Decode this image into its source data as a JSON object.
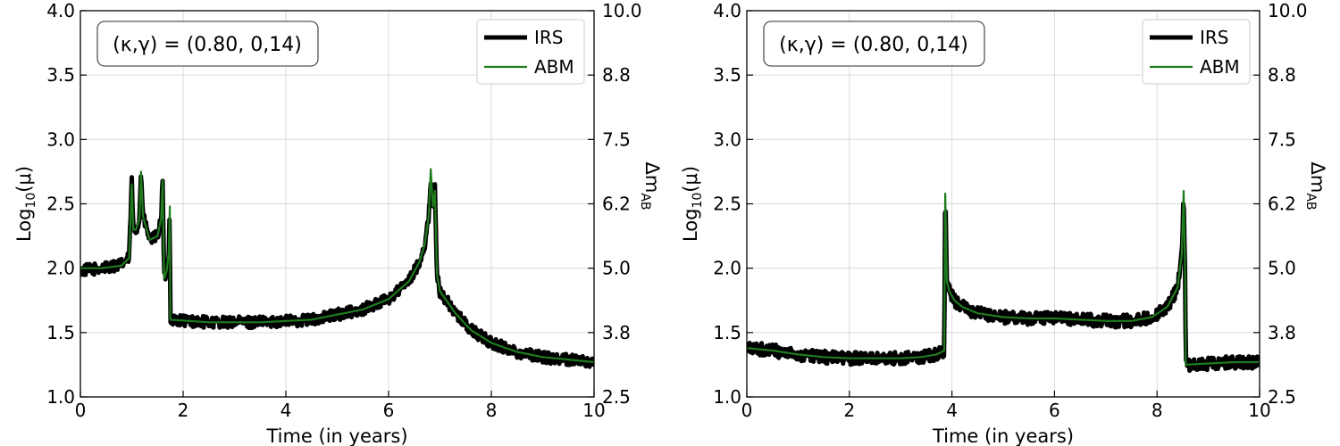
{
  "chart_data": [
    {
      "type": "line",
      "panel": "left",
      "annotation": "(κ,γ) = (0.80, 0,14)",
      "xlabel": "Time (in years)",
      "ylabel": "Log",
      "ylabel_sub": "10",
      "ylabel_suffix": "(μ)",
      "y2label": "Δm",
      "y2label_sub": "AB",
      "xlim": [
        0,
        10
      ],
      "ylim": [
        1.0,
        4.0
      ],
      "xticks": [
        "0",
        "2",
        "4",
        "6",
        "8",
        "10"
      ],
      "yticks": [
        "1.0",
        "1.5",
        "2.0",
        "2.5",
        "3.0",
        "3.5",
        "4.0"
      ],
      "y2ticks": [
        "2.5",
        "3.8",
        "5.0",
        "6.2",
        "7.5",
        "8.8",
        "10.0"
      ],
      "grid": true,
      "legend": "top-right",
      "series": [
        {
          "name": "IRS",
          "color": "#000000",
          "noise": 0.045,
          "x": [
            0,
            0.4,
            0.8,
            0.95,
            1.0,
            1.03,
            1.08,
            1.15,
            1.18,
            1.22,
            1.35,
            1.5,
            1.57,
            1.6,
            1.63,
            1.68,
            1.72,
            1.74,
            1.75,
            2.5,
            3.5,
            4.5,
            5.5,
            6.0,
            6.4,
            6.6,
            6.7,
            6.78,
            6.82,
            6.86,
            6.9,
            6.94,
            7.0,
            7.3,
            7.6,
            8.0,
            8.5,
            9.0,
            9.5,
            10.0
          ],
          "y": [
            1.98,
            2.0,
            2.03,
            2.08,
            2.68,
            2.3,
            2.3,
            2.38,
            2.75,
            2.4,
            2.22,
            2.25,
            2.38,
            2.68,
            1.92,
            1.98,
            2.12,
            2.48,
            1.6,
            1.58,
            1.58,
            1.6,
            1.68,
            1.76,
            1.9,
            2.05,
            2.18,
            2.38,
            2.7,
            2.48,
            2.62,
            1.95,
            1.82,
            1.65,
            1.52,
            1.42,
            1.35,
            1.31,
            1.29,
            1.27
          ]
        },
        {
          "name": "ABM",
          "color": "#1e7b1e",
          "x": [
            0,
            0.4,
            0.8,
            0.95,
            1.0,
            1.03,
            1.08,
            1.15,
            1.18,
            1.22,
            1.35,
            1.5,
            1.57,
            1.6,
            1.63,
            1.68,
            1.72,
            1.74,
            1.75,
            2.5,
            3.5,
            4.5,
            5.5,
            6.0,
            6.4,
            6.6,
            6.7,
            6.78,
            6.82,
            6.86,
            6.9,
            6.94,
            7.0,
            7.3,
            7.6,
            8.0,
            8.5,
            9.0,
            9.5,
            10.0
          ],
          "y": [
            2.0,
            2.0,
            2.02,
            2.08,
            2.65,
            2.3,
            2.3,
            2.38,
            2.75,
            2.4,
            2.22,
            2.25,
            2.38,
            2.68,
            1.92,
            1.98,
            2.12,
            2.48,
            1.6,
            1.58,
            1.58,
            1.6,
            1.68,
            1.76,
            1.9,
            2.05,
            2.18,
            2.4,
            2.77,
            2.48,
            2.6,
            1.95,
            1.82,
            1.65,
            1.52,
            1.42,
            1.35,
            1.31,
            1.29,
            1.27
          ]
        }
      ]
    },
    {
      "type": "line",
      "panel": "right",
      "annotation": "(κ,γ) = (0.80, 0,14)",
      "xlabel": "Time (in years)",
      "ylabel": "Log",
      "ylabel_sub": "10",
      "ylabel_suffix": "(μ)",
      "y2label": "Δm",
      "y2label_sub": "AB",
      "xlim": [
        0,
        10
      ],
      "ylim": [
        1.0,
        4.0
      ],
      "xticks": [
        "0",
        "2",
        "4",
        "6",
        "8",
        "10"
      ],
      "yticks": [
        "1.0",
        "1.5",
        "2.0",
        "2.5",
        "3.0",
        "3.5",
        "4.0"
      ],
      "y2ticks": [
        "2.5",
        "3.8",
        "5.0",
        "6.2",
        "7.5",
        "8.8",
        "10.0"
      ],
      "grid": true,
      "legend": "top-right",
      "series": [
        {
          "name": "IRS",
          "color": "#000000",
          "noise": 0.05,
          "x": [
            0,
            0.5,
            1.0,
            1.5,
            2.0,
            2.5,
            3.0,
            3.4,
            3.7,
            3.85,
            3.87,
            3.9,
            3.95,
            4.05,
            4.2,
            4.5,
            5.0,
            5.5,
            6.0,
            6.5,
            7.0,
            7.5,
            7.9,
            8.2,
            8.4,
            8.48,
            8.52,
            8.55,
            8.56,
            9.0,
            9.5,
            10.0
          ],
          "y": [
            1.38,
            1.36,
            1.33,
            1.31,
            1.3,
            1.3,
            1.3,
            1.31,
            1.33,
            1.36,
            2.6,
            1.9,
            1.82,
            1.75,
            1.7,
            1.65,
            1.62,
            1.61,
            1.61,
            1.6,
            1.59,
            1.59,
            1.62,
            1.7,
            1.85,
            2.1,
            2.55,
            1.9,
            1.25,
            1.26,
            1.27,
            1.27
          ]
        },
        {
          "name": "ABM",
          "color": "#1e7b1e",
          "x": [
            0,
            0.5,
            1.0,
            1.5,
            2.0,
            2.5,
            3.0,
            3.4,
            3.7,
            3.85,
            3.87,
            3.9,
            3.95,
            4.05,
            4.2,
            4.5,
            5.0,
            5.5,
            6.0,
            6.5,
            7.0,
            7.5,
            7.9,
            8.2,
            8.4,
            8.48,
            8.52,
            8.55,
            8.56,
            9.0,
            9.5,
            10.0
          ],
          "y": [
            1.38,
            1.36,
            1.33,
            1.31,
            1.3,
            1.3,
            1.3,
            1.31,
            1.33,
            1.36,
            2.58,
            1.9,
            1.82,
            1.75,
            1.7,
            1.65,
            1.62,
            1.61,
            1.61,
            1.6,
            1.59,
            1.59,
            1.62,
            1.7,
            1.85,
            2.1,
            2.6,
            1.9,
            1.25,
            1.26,
            1.27,
            1.27
          ]
        }
      ]
    }
  ]
}
